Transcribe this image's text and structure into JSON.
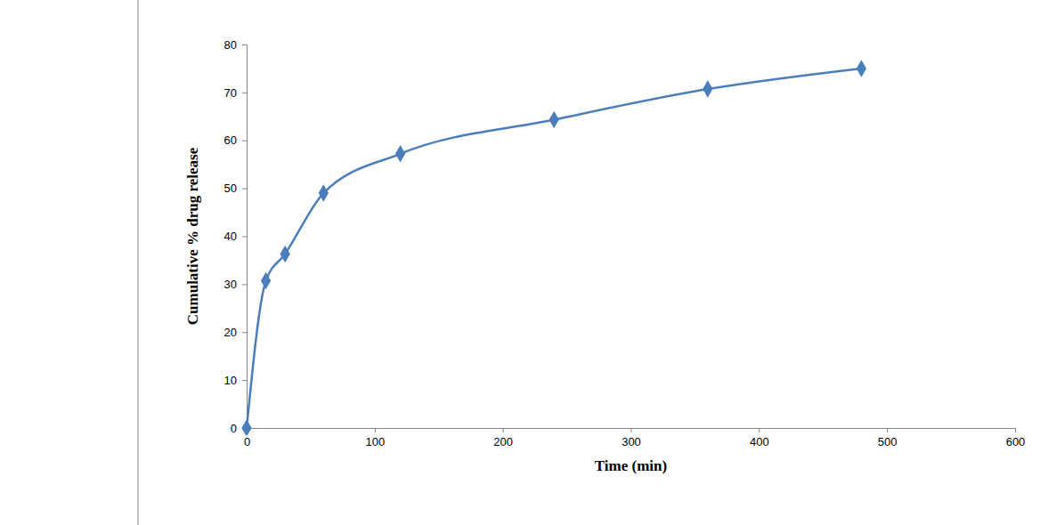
{
  "chart_data": {
    "type": "line",
    "x_label": "Time (min)",
    "y_label": "Cumulative % drug release",
    "x": [
      0,
      15,
      30,
      60,
      120,
      240,
      360,
      480
    ],
    "values": [
      0,
      30.7,
      36.3,
      49,
      57.2,
      64.3,
      70.7,
      75
    ],
    "color": "#4a7ebb",
    "marker": "diamond",
    "line_style": "smooth",
    "xlim": [
      0,
      600
    ],
    "xticks": [
      0,
      100,
      200,
      300,
      400,
      500,
      600
    ],
    "ylim": [
      0,
      80
    ],
    "yticks": [
      0,
      10,
      20,
      30,
      40,
      50,
      60,
      70,
      80
    ],
    "grid": false
  }
}
